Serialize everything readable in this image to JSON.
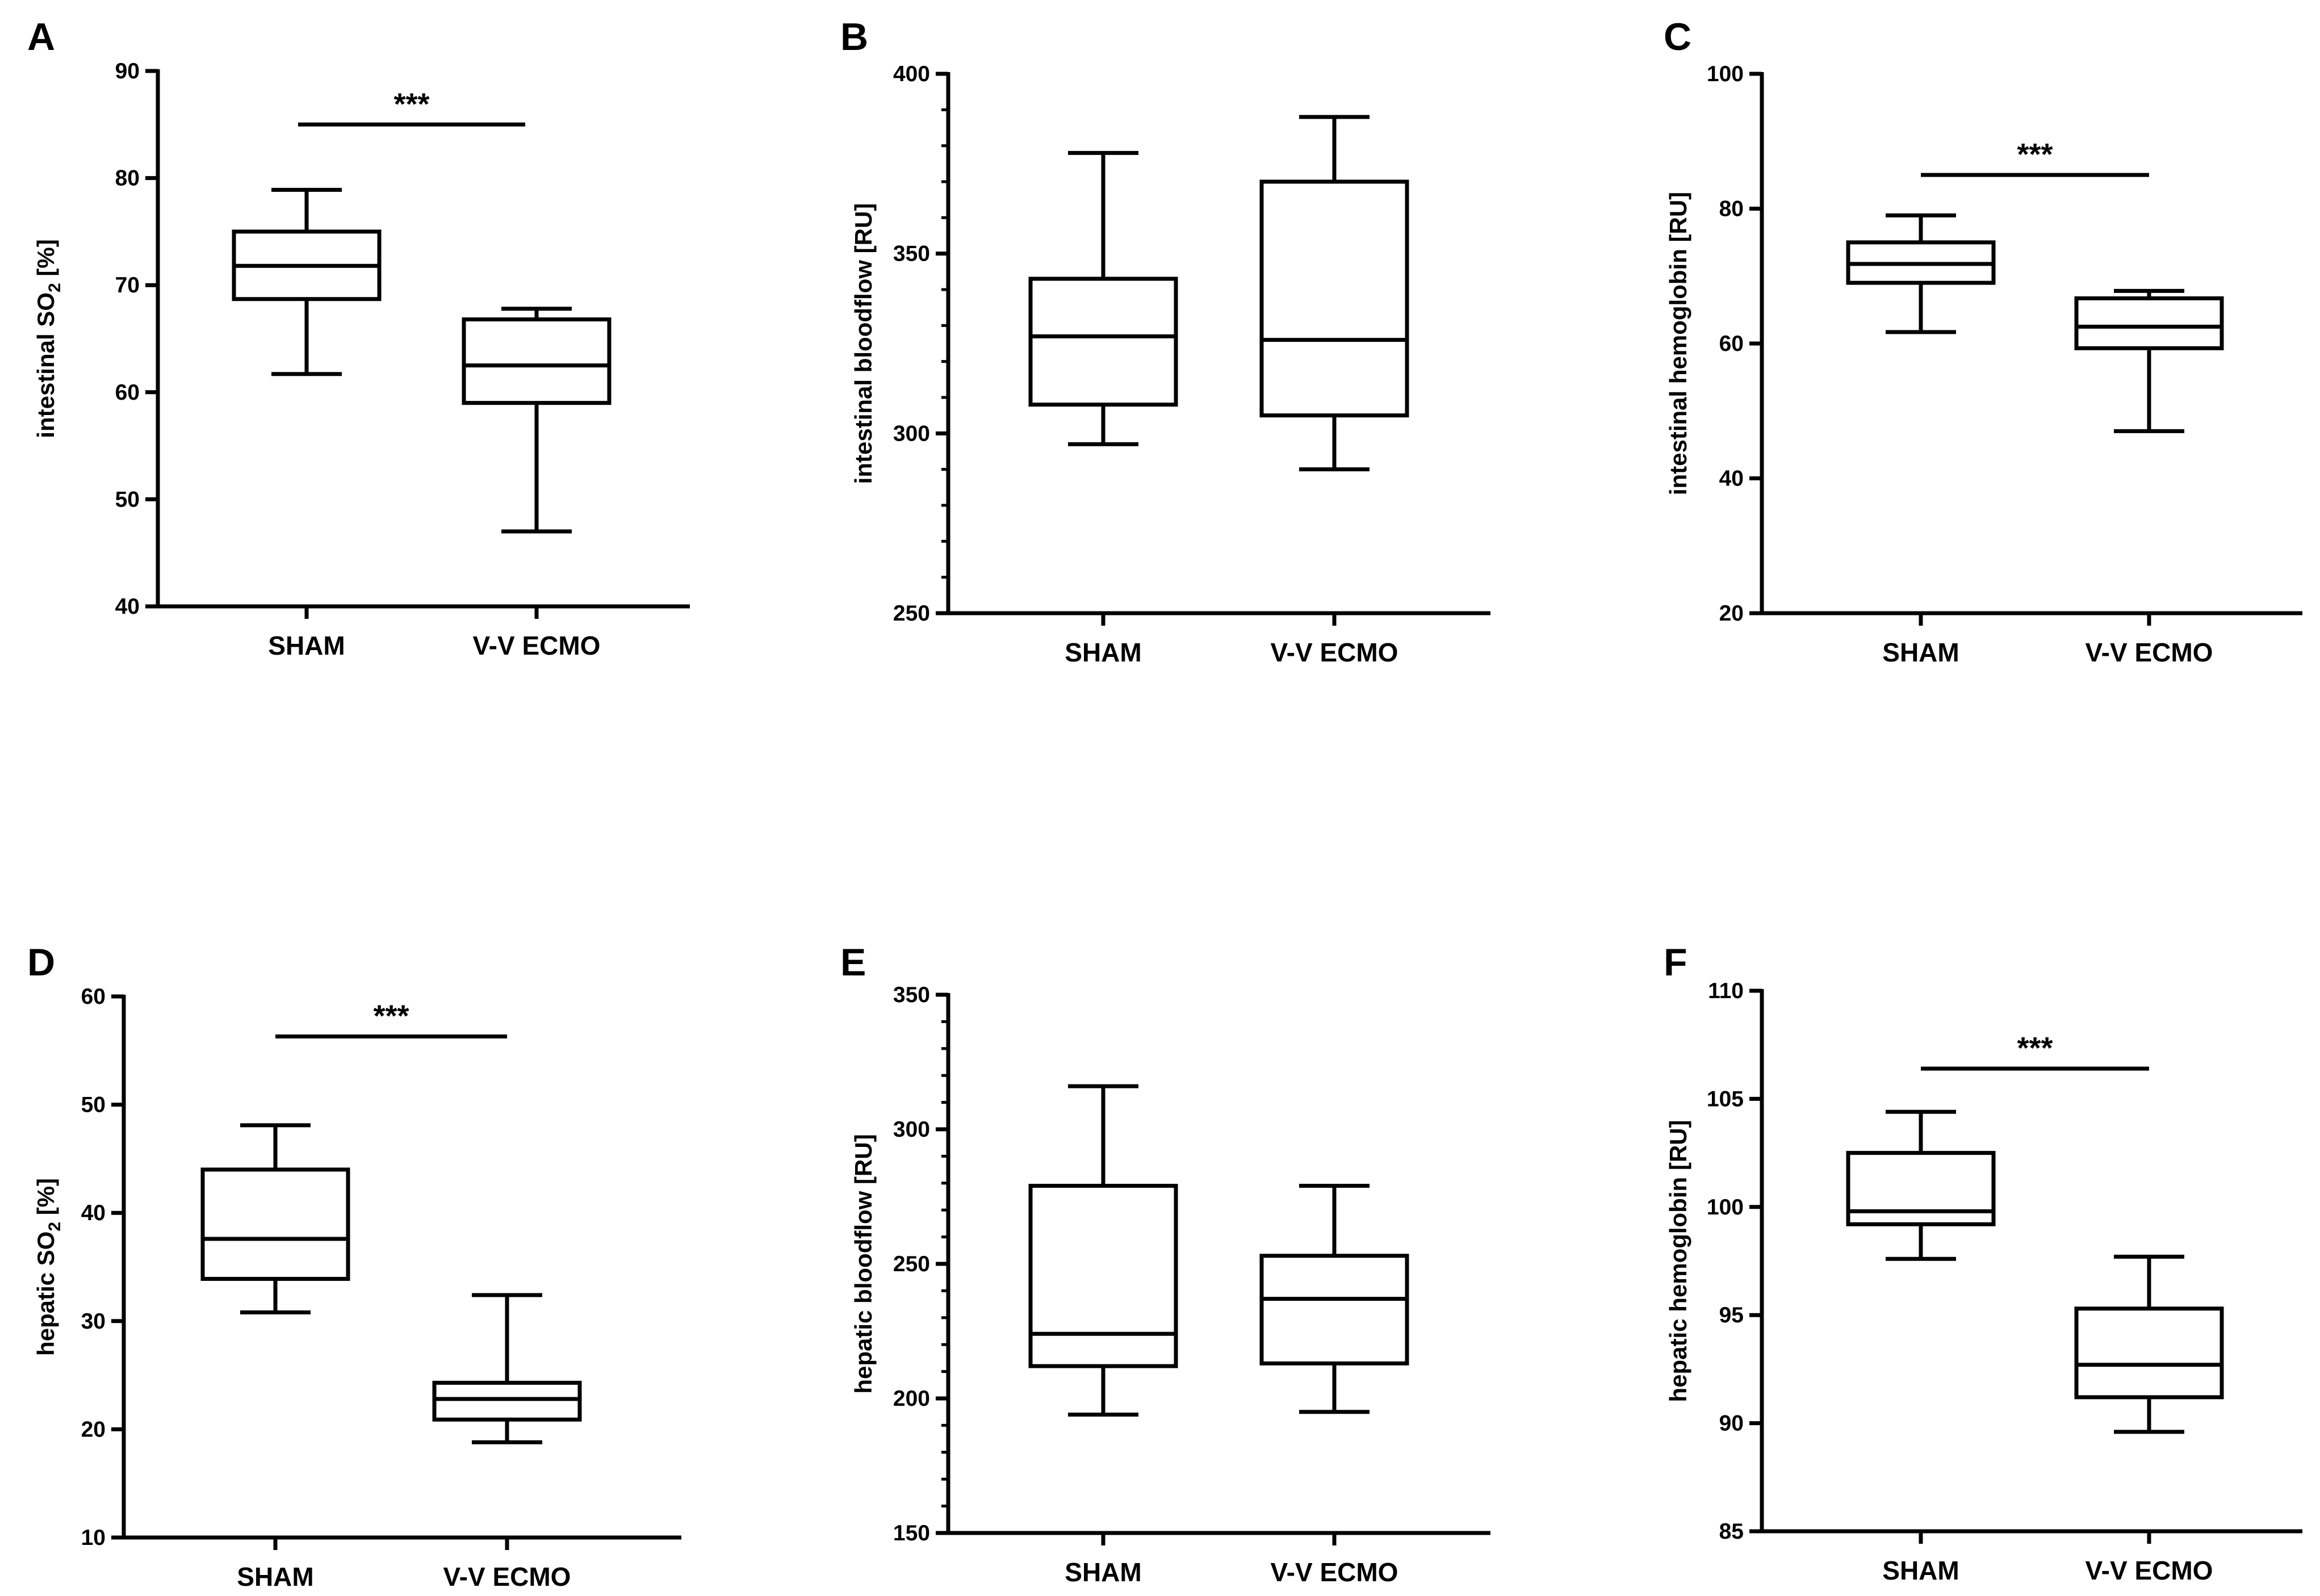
{
  "chart_data": [
    {
      "panel": "A",
      "type": "box",
      "ylabel": "intestinal SO",
      "ylabel_sub": "2",
      "ylabel_unit": " [%]",
      "ylim": [
        40,
        90
      ],
      "yticks": [
        40,
        50,
        60,
        70,
        80,
        90
      ],
      "minor_ticks": 0,
      "categories": [
        "SHAM",
        "V-V ECMO"
      ],
      "boxes": [
        {
          "name": "SHAM",
          "min": 61.7,
          "q1": 68.7,
          "median": 71.8,
          "q3": 75.0,
          "max": 78.9
        },
        {
          "name": "V-V ECMO",
          "min": 47.0,
          "q1": 59.0,
          "median": 62.5,
          "q3": 66.8,
          "max": 67.8
        }
      ],
      "significance": {
        "label": "***",
        "y": 85
      }
    },
    {
      "panel": "B",
      "type": "box",
      "ylabel": "intestinal bloodflow [RU]",
      "ylim": [
        250,
        400
      ],
      "yticks": [
        250,
        300,
        350,
        400
      ],
      "minor_ticks": 4,
      "categories": [
        "SHAM",
        "V-V ECMO"
      ],
      "boxes": [
        {
          "name": "SHAM",
          "min": 297,
          "q1": 308,
          "median": 327,
          "q3": 343,
          "max": 378
        },
        {
          "name": "V-V ECMO",
          "min": 290,
          "q1": 305,
          "median": 326,
          "q3": 370,
          "max": 388
        }
      ]
    },
    {
      "panel": "C",
      "type": "box",
      "ylabel": "intestinal hemoglobin [RU]",
      "ylim": [
        20,
        100
      ],
      "yticks": [
        20,
        40,
        60,
        80,
        100
      ],
      "minor_ticks": 0,
      "categories": [
        "SHAM",
        "V-V ECMO"
      ],
      "boxes": [
        {
          "name": "SHAM",
          "min": 61.7,
          "q1": 69.0,
          "median": 71.8,
          "q3": 75.0,
          "max": 79.0
        },
        {
          "name": "V-V ECMO",
          "min": 47.0,
          "q1": 59.3,
          "median": 62.5,
          "q3": 66.7,
          "max": 67.8
        }
      ],
      "significance": {
        "label": "***",
        "y": 85
      }
    },
    {
      "panel": "D",
      "type": "box",
      "ylabel": "hepatic SO",
      "ylabel_sub": "2",
      "ylabel_unit": " [%]",
      "ylim": [
        10,
        60
      ],
      "yticks": [
        10,
        20,
        30,
        40,
        50,
        60
      ],
      "minor_ticks": 0,
      "categories": [
        "SHAM",
        "V-V ECMO"
      ],
      "boxes": [
        {
          "name": "SHAM",
          "min": 30.8,
          "q1": 33.9,
          "median": 37.6,
          "q3": 44.0,
          "max": 48.1
        },
        {
          "name": "V-V ECMO",
          "min": 18.8,
          "q1": 20.9,
          "median": 22.8,
          "q3": 24.3,
          "max": 32.4
        }
      ],
      "significance": {
        "label": "***",
        "y": 56.3
      }
    },
    {
      "panel": "E",
      "type": "box",
      "ylabel": "hepatic bloodflow [RU]",
      "ylim": [
        150,
        350
      ],
      "yticks": [
        150,
        200,
        250,
        300,
        350
      ],
      "minor_ticks": 4,
      "categories": [
        "SHAM",
        "V-V ECMO"
      ],
      "boxes": [
        {
          "name": "SHAM",
          "min": 194,
          "q1": 212,
          "median": 224,
          "q3": 279,
          "max": 316
        },
        {
          "name": "V-V ECMO",
          "min": 195,
          "q1": 213,
          "median": 237,
          "q3": 253,
          "max": 279
        }
      ]
    },
    {
      "panel": "F",
      "type": "box",
      "ylabel": "hepatic hemoglobin [RU]",
      "ylim": [
        85,
        110
      ],
      "yticks": [
        85,
        90,
        95,
        100,
        105,
        110
      ],
      "minor_ticks": 0,
      "categories": [
        "SHAM",
        "V-V ECMO"
      ],
      "boxes": [
        {
          "name": "SHAM",
          "min": 97.6,
          "q1": 99.2,
          "median": 99.8,
          "q3": 102.5,
          "max": 104.4
        },
        {
          "name": "V-V ECMO",
          "min": 89.6,
          "q1": 91.2,
          "median": 92.7,
          "q3": 95.3,
          "max": 97.7
        }
      ],
      "significance": {
        "label": "***",
        "y": 106.4
      }
    }
  ]
}
